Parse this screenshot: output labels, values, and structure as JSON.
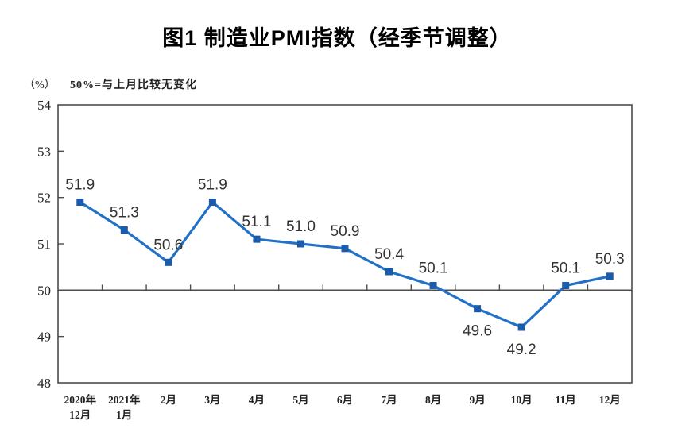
{
  "page": {
    "title": "图1 制造业PMI指数（经季节调整）"
  },
  "chart_data": {
    "type": "line",
    "title": "图1 制造业PMI指数（经季节调整）",
    "unit_label": "（%）",
    "subtitle": "50%=与上月比较无变化",
    "categories": [
      "2020年\n12月",
      "2021年\n1月",
      "2月",
      "3月",
      "4月",
      "5月",
      "6月",
      "7月",
      "8月",
      "9月",
      "10月",
      "11月",
      "12月"
    ],
    "values": [
      51.9,
      51.3,
      50.6,
      51.9,
      51.1,
      51.0,
      50.9,
      50.4,
      50.1,
      49.6,
      49.2,
      50.1,
      50.3
    ],
    "point_labels": [
      "51.9",
      "51.3",
      "50.6",
      "51.9",
      "51.1",
      "51.0",
      "50.9",
      "50.4",
      "50.1",
      "49.6",
      "49.2",
      "50.1",
      "50.3"
    ],
    "label_side": [
      "above",
      "above",
      "above",
      "above",
      "above",
      "above",
      "above",
      "above",
      "above",
      "below",
      "below",
      "above",
      "above"
    ],
    "ylim": [
      48,
      54
    ],
    "ytick_step": 1,
    "yticks": [
      "48",
      "49",
      "50",
      "51",
      "52",
      "53",
      "54"
    ],
    "reference_line": 50,
    "grid": "off",
    "legend": "none",
    "line_color": "#2271C8",
    "marker_color": "#1A5BAB",
    "axis_color": "#4D4D4D",
    "data_label_color": "#333333",
    "tick_label_color": "#222222"
  }
}
